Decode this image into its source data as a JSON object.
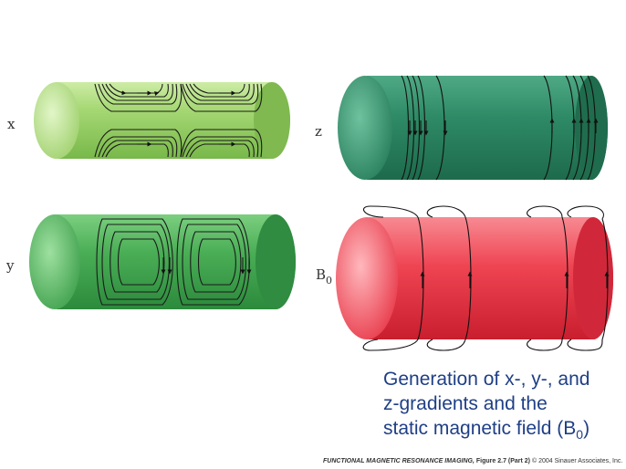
{
  "labels": {
    "x": "x",
    "y": "y",
    "z": "z",
    "b0_main": "B",
    "b0_sub": "0"
  },
  "caption": {
    "line1": "Generation of x-, y-, and",
    "line2": "z-gradients and the",
    "line3_prefix": "static magnetic field (B",
    "line3_sub": "0",
    "line3_suffix": ")"
  },
  "credit": {
    "book": "FUNCTIONAL MAGNETIC RESONANCE IMAGING,",
    "figure": "Figure 2.7 (Part 2)",
    "copyright": "© 2004 Sinauer Associates, Inc."
  },
  "colors": {
    "x_cylinder": "#a8d878",
    "y_cylinder": "#4caf5a",
    "z_cylinder": "#2f8a66",
    "b0_cylinder": "#ee3c4c",
    "caption_text": "#1f3f86"
  }
}
